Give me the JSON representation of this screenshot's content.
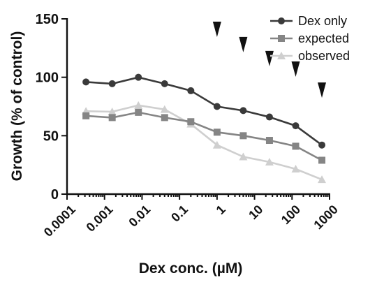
{
  "chart_data": {
    "type": "line",
    "xscale": "log",
    "xlabel": "Dex conc. (µM)",
    "ylabel": "Growth (% of control)",
    "ylim": [
      0,
      150
    ],
    "yticks": [
      0,
      50,
      100,
      150
    ],
    "xticks": [
      {
        "value": 0.0001,
        "label": "0.0001"
      },
      {
        "value": 0.001,
        "label": "0.001"
      },
      {
        "value": 0.01,
        "label": "0.01"
      },
      {
        "value": 0.1,
        "label": "0.1"
      },
      {
        "value": 1,
        "label": "1"
      },
      {
        "value": 10,
        "label": "10"
      },
      {
        "value": 100,
        "label": "100"
      },
      {
        "value": 1000,
        "label": "1000"
      }
    ],
    "x": [
      0.00032,
      0.0016,
      0.008,
      0.04,
      0.2,
      1,
      5,
      25,
      125,
      625
    ],
    "series": [
      {
        "name": "Dex only",
        "color": "#3a3a3a",
        "marker": "circle",
        "values": [
          96,
          94.5,
          100,
          94.5,
          88.5,
          75,
          71.5,
          66,
          58.5,
          42
        ]
      },
      {
        "name": "expected",
        "color": "#858585",
        "marker": "square",
        "values": [
          67,
          65.5,
          70,
          65.5,
          62,
          53,
          50,
          46,
          41,
          29
        ]
      },
      {
        "name": "observed",
        "color": "#cfcfcf",
        "marker": "triangle",
        "values": [
          71,
          70.5,
          76,
          72.5,
          60,
          42,
          32,
          27.5,
          21.5,
          12.5
        ]
      }
    ],
    "annotations": {
      "marker": "arrowhead-down",
      "x": [
        1,
        5,
        25,
        125,
        625
      ],
      "y": [
        141,
        128,
        116,
        107,
        89
      ]
    },
    "legend": "top-right",
    "grid": false
  }
}
